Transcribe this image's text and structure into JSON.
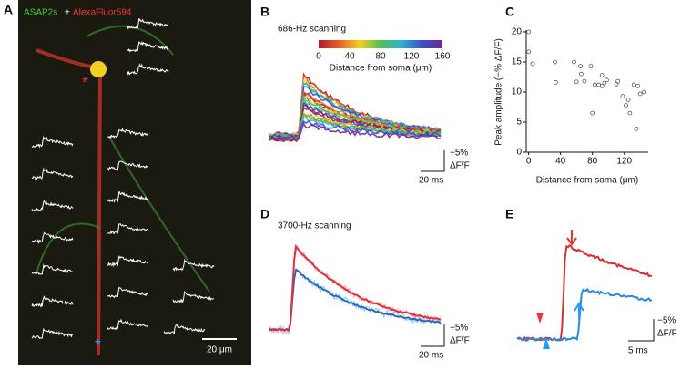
{
  "figure": {
    "A": {
      "label": "A",
      "legend": [
        "ASAP2s",
        "+",
        "AlexaFluor594"
      ],
      "markers": [
        "*",
        "*"
      ],
      "scale_bar": "20 μm"
    },
    "B": {
      "label": "B",
      "title": "686-Hz scanning",
      "colorbar_label": "Distance from soma (μm)",
      "colorbar_ticks": [
        0,
        40,
        80,
        120,
        160
      ],
      "colorbar_lim": [
        0,
        160
      ],
      "scale_y": [
        "−5%",
        "ΔF/F"
      ],
      "scale_x": "20 ms"
    },
    "D": {
      "label": "D",
      "title": "3700-Hz scanning",
      "scale_y": [
        "−5%",
        "ΔF/F"
      ],
      "scale_x": "20 ms"
    },
    "E": {
      "label": "E",
      "scale_y": [
        "−5%",
        "ΔF/F"
      ],
      "scale_x": "5 ms"
    }
  },
  "chart_data": {
    "type": "scatter",
    "panel_label": "C",
    "xlabel": "Distance from soma (μm)",
    "ylabel": "Peak amplitude (−% ΔF/F)",
    "x": [
      0,
      0,
      5,
      33,
      34,
      57,
      60,
      65,
      66,
      70,
      78,
      80,
      83,
      88,
      92,
      92,
      95,
      98,
      110,
      112,
      118,
      122,
      125,
      127,
      132,
      135,
      137,
      140,
      145
    ],
    "values": [
      20,
      16.7,
      14.7,
      15,
      11.6,
      15,
      11.7,
      14.3,
      13,
      11.8,
      14.3,
      6.5,
      11.2,
      11.2,
      12.8,
      11,
      11.5,
      12,
      11.3,
      11.8,
      9.3,
      7.8,
      8.7,
      6.5,
      11.2,
      3.9,
      11,
      9.7,
      10
    ],
    "xlim": [
      -3,
      150
    ],
    "ylim": [
      0,
      20
    ],
    "xticks": [
      0,
      40,
      80,
      120
    ],
    "yticks": [
      0,
      5,
      10,
      15,
      20
    ],
    "color": "#555"
  }
}
